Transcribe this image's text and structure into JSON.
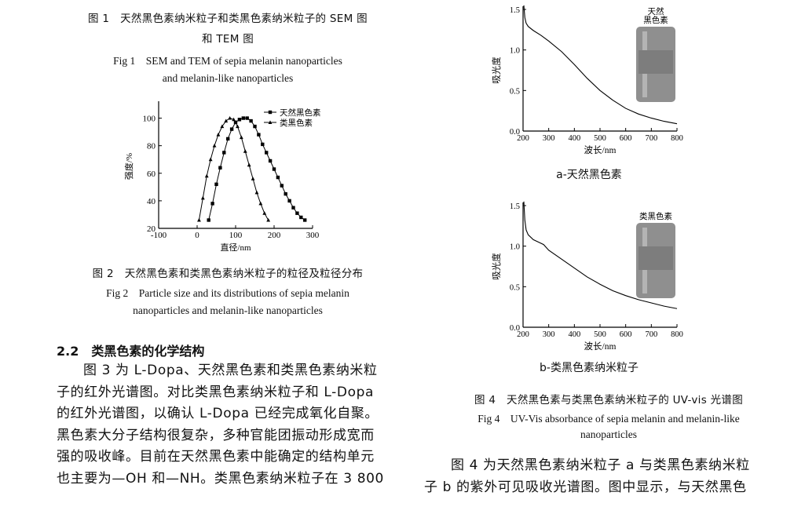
{
  "fig1": {
    "zh_line1": "图 1　天然黑色素纳米粒子和类黑色素纳米粒子的 SEM 图",
    "zh_line2": "和 TEM 图",
    "en_line1": "Fig 1　SEM and TEM of sepia melanin nanoparticles",
    "en_line2": "and melanin-like nanoparticles"
  },
  "fig2": {
    "zh": "图 2　天然黑色素和类黑色素纳米粒子的粒径及粒径分布",
    "en_line1": "Fig 2　Particle size and its distributions of sepia melanin",
    "en_line2": "nanoparticles and melanin-like nanoparticles"
  },
  "section": {
    "heading": "2.2　类黑色素的化学结构",
    "lines": [
      "图 3 为 L-Dopa、天然黑色素和类黑色素纳米粒",
      "子的红外光谱图。对比类黑色素纳米粒子和 L-Dopa",
      "的红外光谱图，以确认 L-Dopa 已经完成氧化自聚。",
      "黑色素大分子结构很复杂，多种官能团振动形成宽而",
      "强的吸收峰。目前在天然黑色素中能确定的结构单元",
      "也主要为—OH 和—NH。类黑色素纳米粒子在 3 800"
    ]
  },
  "fig4": {
    "sub_a": "a-天然黑色素",
    "sub_b": "b-类黑色素纳米粒子",
    "zh": "图 4　天然黑色素与类黑色素纳米粒子的 UV-vis 光谱图",
    "en_line1": "Fig 4　UV-Vis absorbance of sepia melanin and melanin-like",
    "en_line2": "nanoparticles"
  },
  "right_text": {
    "lines": [
      "图 4 为天然黑色素纳米粒子 a 与类黑色素纳米粒",
      "子 b 的紫外可见吸收光谱图。图中显示，与天然黑色"
    ]
  },
  "chart_data": [
    {
      "type": "line",
      "xlabel": "直径/nm",
      "ylabel": "强度/%",
      "xlim": [
        -100,
        300
      ],
      "ylim": [
        20,
        110
      ],
      "xticks": [
        "-100",
        "0",
        "100",
        "200",
        "300"
      ],
      "yticks": [
        "20",
        "40",
        "60",
        "80",
        "100"
      ],
      "legend_position": "top-right",
      "series": [
        {
          "name": "天然黑色素",
          "marker": "square",
          "x": [
            30,
            40,
            50,
            60,
            70,
            80,
            90,
            100,
            110,
            120,
            130,
            140,
            150,
            160,
            170,
            180,
            190,
            200,
            210,
            220,
            230,
            240,
            250,
            260,
            270,
            280
          ],
          "y": [
            26,
            38,
            52,
            64,
            75,
            85,
            92,
            97,
            99,
            100,
            100,
            98,
            94,
            88,
            81,
            75,
            69,
            63,
            57,
            51,
            45,
            40,
            35,
            31,
            28,
            26
          ]
        },
        {
          "name": "类黑色素",
          "marker": "triangle",
          "x": [
            5,
            15,
            25,
            35,
            45,
            55,
            65,
            75,
            85,
            95,
            105,
            115,
            125,
            135,
            145,
            155,
            165,
            175,
            185
          ],
          "y": [
            26,
            42,
            58,
            70,
            80,
            88,
            94,
            98,
            100,
            99,
            94,
            86,
            76,
            66,
            56,
            46,
            38,
            31,
            26
          ]
        }
      ]
    },
    {
      "type": "line",
      "panel": "a",
      "xlabel": "波长/nm",
      "ylabel": "吸光度",
      "xlim": [
        200,
        800
      ],
      "ylim": [
        0,
        1.5
      ],
      "xticks": [
        "200",
        "300",
        "400",
        "500",
        "600",
        "700",
        "800"
      ],
      "yticks": [
        "0.0",
        "0.5",
        "1.0",
        "1.5"
      ],
      "inset_label": [
        "天然",
        "黑色素"
      ],
      "series": [
        {
          "x": [
            203,
            207,
            212,
            220,
            240,
            270,
            300,
            350,
            400,
            450,
            500,
            550,
            600,
            650,
            700,
            750,
            800
          ],
          "y": [
            1.55,
            1.4,
            1.33,
            1.29,
            1.24,
            1.18,
            1.11,
            0.98,
            0.82,
            0.65,
            0.5,
            0.38,
            0.28,
            0.21,
            0.16,
            0.12,
            0.09
          ]
        }
      ]
    },
    {
      "type": "line",
      "panel": "b",
      "xlabel": "波长/nm",
      "ylabel": "吸光度",
      "xlim": [
        200,
        800
      ],
      "ylim": [
        0,
        1.5
      ],
      "xticks": [
        "200",
        "300",
        "400",
        "500",
        "600",
        "700",
        "800"
      ],
      "yticks": [
        "0.0",
        "0.5",
        "1.0",
        "1.5"
      ],
      "inset_label": [
        "类黑色素"
      ],
      "series": [
        {
          "x": [
            203,
            207,
            212,
            220,
            240,
            260,
            280,
            300,
            350,
            400,
            450,
            500,
            550,
            600,
            650,
            700,
            750,
            800
          ],
          "y": [
            1.55,
            1.32,
            1.2,
            1.14,
            1.08,
            1.05,
            1.02,
            0.95,
            0.84,
            0.73,
            0.62,
            0.53,
            0.45,
            0.39,
            0.34,
            0.3,
            0.26,
            0.23
          ]
        }
      ]
    }
  ]
}
